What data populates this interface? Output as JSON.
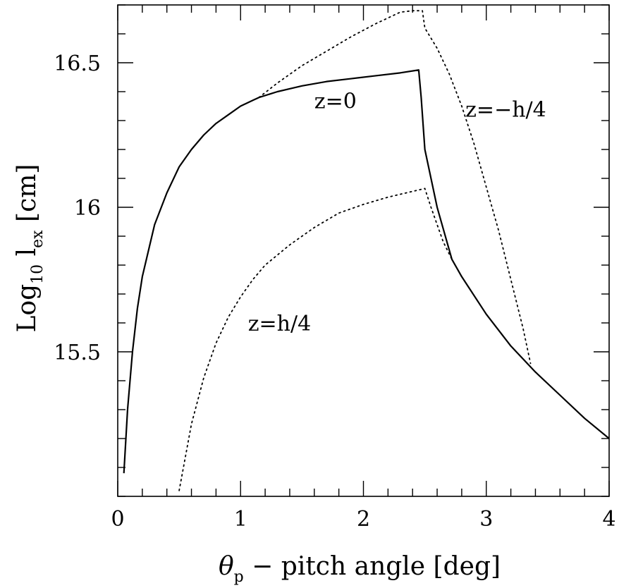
{
  "chart_data": {
    "type": "line",
    "xlabel": {
      "symbol": "θ",
      "subscript": "p",
      "text": " − pitch angle [deg]"
    },
    "ylabel": {
      "prefix": "Log",
      "prefix_sub": "10",
      "main": " l",
      "main_sub": "ex",
      "suffix": " [cm]"
    },
    "xlim": [
      0,
      4
    ],
    "ylim": [
      15.0,
      16.7
    ],
    "x_ticks": [
      {
        "value": 0,
        "label": "0"
      },
      {
        "value": 1,
        "label": "1"
      },
      {
        "value": 2,
        "label": "2"
      },
      {
        "value": 3,
        "label": "3"
      },
      {
        "value": 4,
        "label": "4"
      }
    ],
    "y_ticks": [
      {
        "value": 15.5,
        "label": "15.5"
      },
      {
        "value": 16.0,
        "label": "16"
      },
      {
        "value": 16.5,
        "label": "16.5"
      }
    ],
    "x_minor_step": 0.2,
    "y_minor_step": 0.1,
    "grid": false,
    "series": [
      {
        "style": "solid",
        "color": "#000000",
        "x": [
          0.05,
          0.08,
          0.12,
          0.16,
          0.2,
          0.3,
          0.4,
          0.5,
          0.6,
          0.7,
          0.8,
          0.9,
          1.0,
          1.1,
          1.15,
          1.3,
          1.5,
          1.7,
          1.9,
          2.1,
          2.3,
          2.45,
          2.47,
          2.5,
          2.6,
          2.72,
          2.8,
          3.0,
          3.2,
          3.4,
          3.6,
          3.8,
          4.0
        ],
        "y": [
          15.08,
          15.3,
          15.5,
          15.65,
          15.76,
          15.94,
          16.05,
          16.14,
          16.2,
          16.25,
          16.29,
          16.32,
          16.35,
          16.37,
          16.38,
          16.4,
          16.42,
          16.435,
          16.445,
          16.455,
          16.465,
          16.475,
          16.38,
          16.2,
          16.0,
          15.82,
          15.76,
          15.63,
          15.52,
          15.43,
          15.35,
          15.27,
          15.2
        ]
      },
      {
        "style": "dotted",
        "color": "#000000",
        "x": [
          1.15,
          1.3,
          1.5,
          1.7,
          1.9,
          2.1,
          2.2,
          2.3,
          2.4,
          2.45,
          2.48,
          2.5,
          2.6,
          2.7,
          2.8,
          2.9,
          3.0,
          3.1,
          3.2,
          3.3,
          3.36
        ],
        "y": [
          16.38,
          16.43,
          16.49,
          16.54,
          16.59,
          16.635,
          16.655,
          16.675,
          16.68,
          16.68,
          16.68,
          16.62,
          16.55,
          16.46,
          16.35,
          16.22,
          16.07,
          15.92,
          15.75,
          15.58,
          15.46
        ]
      },
      {
        "style": "dotted",
        "color": "#000000",
        "x": [
          0.5,
          0.6,
          0.7,
          0.8,
          0.9,
          1.0,
          1.1,
          1.2,
          1.4,
          1.6,
          1.8,
          2.0,
          2.2,
          2.4,
          2.5,
          2.55,
          2.6,
          2.65,
          2.72
        ],
        "y": [
          15.02,
          15.25,
          15.41,
          15.53,
          15.62,
          15.69,
          15.75,
          15.8,
          15.87,
          15.93,
          15.98,
          16.01,
          16.035,
          16.055,
          16.065,
          16.0,
          15.94,
          15.88,
          15.82
        ]
      }
    ],
    "annotations": [
      {
        "text": "z=0",
        "x": 1.6,
        "y": 16.37
      },
      {
        "text": "z=−h/4",
        "x": 2.83,
        "y": 16.34
      },
      {
        "text": "z=h/4",
        "x": 1.06,
        "y": 15.6
      }
    ]
  }
}
